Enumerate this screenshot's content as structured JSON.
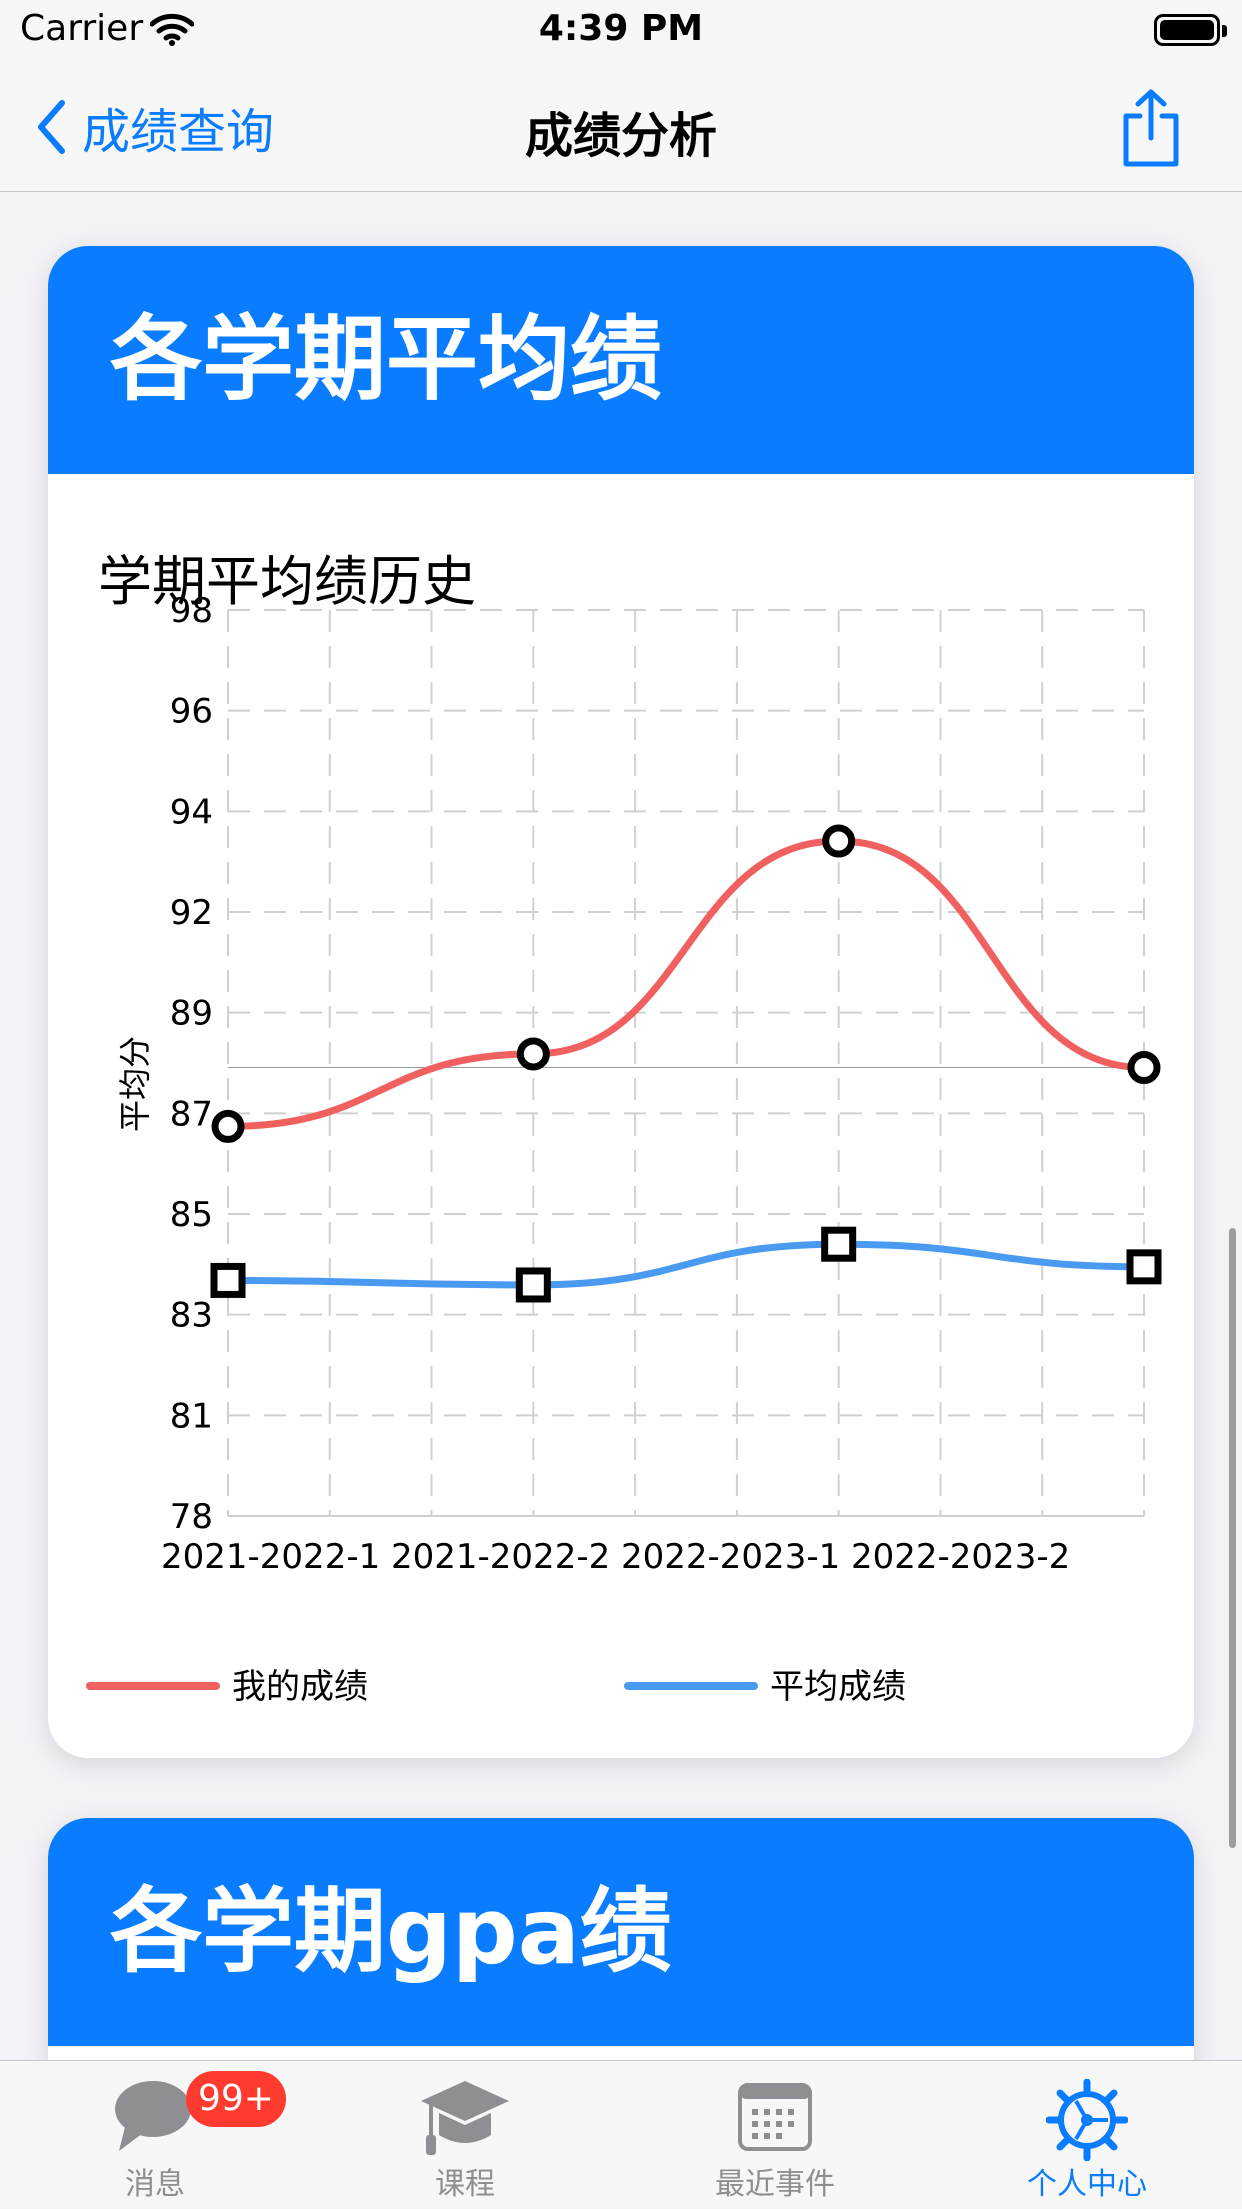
{
  "status_bar": {
    "carrier": "Carrier",
    "time": "4:39 PM"
  },
  "nav": {
    "back_label": "成绩查询",
    "title": "成绩分析"
  },
  "cards": [
    {
      "header": "各学期平均绩"
    },
    {
      "header": "各学期gpa绩"
    }
  ],
  "chart_data": {
    "type": "line",
    "title": "学期平均绩历史",
    "ylabel": "平均分",
    "xlabel": "",
    "categories": [
      "2021-2022-1",
      "2021-2022-2",
      "2022-2023-1",
      "2022-2023-2"
    ],
    "y_ticks": [
      "98",
      "96",
      "94",
      "92",
      "89",
      "87",
      "85",
      "83",
      "81",
      "78"
    ],
    "ylim": [
      78,
      98
    ],
    "grid": true,
    "legend_position": "bottom",
    "series": [
      {
        "name": "我的成绩",
        "values": [
          86.6,
          88.2,
          92.9,
          87.9
        ],
        "color": "#f0605f",
        "marker": "circle"
      },
      {
        "name": "平均成绩",
        "values": [
          83.2,
          83.1,
          84.0,
          83.5
        ],
        "color": "#4a9af1",
        "marker": "square"
      }
    ]
  },
  "tab_bar": {
    "items": [
      {
        "label": "消息",
        "icon": "chat-bubble-icon",
        "badge": "99+"
      },
      {
        "label": "课程",
        "icon": "graduation-cap-icon"
      },
      {
        "label": "最近事件",
        "icon": "calendar-icon"
      },
      {
        "label": "个人中心",
        "icon": "settings-gear-icon",
        "active": true
      }
    ],
    "active_color": "#0a7cff",
    "inactive_color": "#8e8e93"
  }
}
